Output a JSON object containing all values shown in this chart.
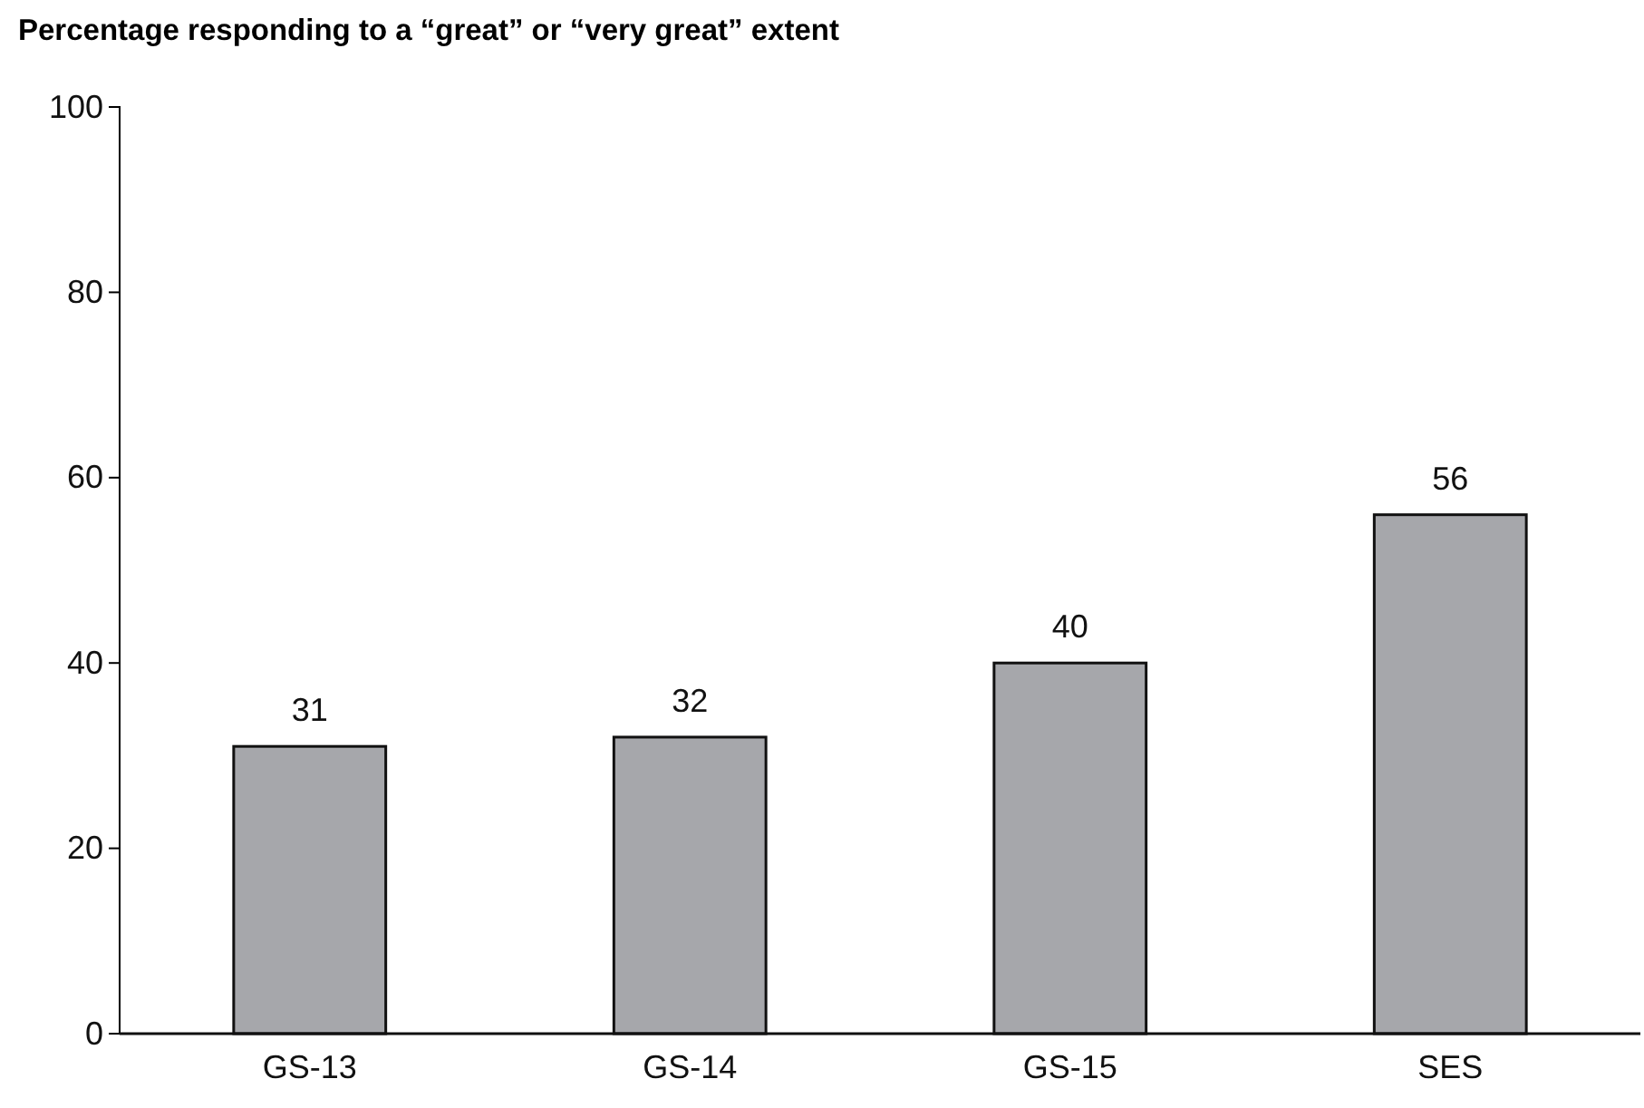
{
  "chart_data": {
    "type": "bar",
    "title": "Percentage responding to a “great” or “very great” extent",
    "categories": [
      "GS-13",
      "GS-14",
      "GS-15",
      "SES"
    ],
    "values": [
      31,
      32,
      40,
      56
    ],
    "color": "#a6a7ab",
    "ylim": [
      0,
      100
    ],
    "yticks": [
      0,
      20,
      40,
      60,
      80,
      100
    ],
    "data_labels": true
  }
}
